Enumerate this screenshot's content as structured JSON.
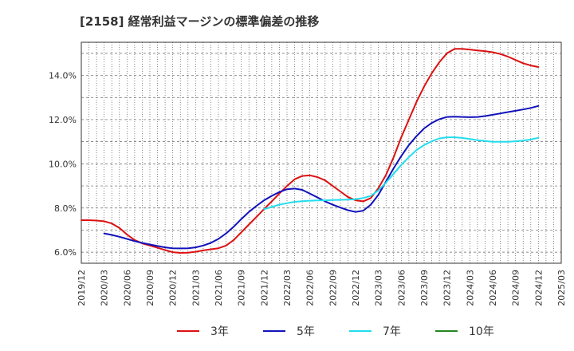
{
  "chart_data": {
    "type": "line",
    "title": "[2158]  経常利益マージンの標準偏差の推移",
    "xlabel": "",
    "ylabel": "",
    "ylim": [
      5.5,
      15.5
    ],
    "y_ticks": [
      "6.0%",
      "8.0%",
      "10.0%",
      "12.0%",
      "14.0%"
    ],
    "y_tick_values": [
      6,
      8,
      10,
      12,
      14
    ],
    "x_ticks": [
      "2019/12",
      "2020/03",
      "2020/06",
      "2020/09",
      "2020/12",
      "2021/03",
      "2021/06",
      "2021/09",
      "2021/12",
      "2022/03",
      "2022/06",
      "2022/09",
      "2022/12",
      "2023/03",
      "2023/06",
      "2023/09",
      "2023/12",
      "2024/03",
      "2024/06",
      "2024/09",
      "2024/12",
      "2025/03"
    ],
    "grid": true,
    "legend_position": "bottom",
    "series": [
      {
        "name": "3年",
        "color": "#dd1111",
        "x": [
          "2019/12",
          "2020/01",
          "2020/02",
          "2020/03",
          "2020/04",
          "2020/05",
          "2020/06",
          "2020/07",
          "2020/08",
          "2020/09",
          "2020/10",
          "2020/11",
          "2020/12",
          "2021/01",
          "2021/02",
          "2021/03",
          "2021/04",
          "2021/05",
          "2021/06",
          "2021/07",
          "2021/08",
          "2021/09",
          "2021/10",
          "2021/11",
          "2021/12",
          "2022/01",
          "2022/02",
          "2022/03",
          "2022/04",
          "2022/05",
          "2022/06",
          "2022/07",
          "2022/08",
          "2022/09",
          "2022/10",
          "2022/11",
          "2022/12",
          "2023/01",
          "2023/02",
          "2023/03",
          "2023/04",
          "2023/05",
          "2023/06",
          "2023/07",
          "2023/08",
          "2023/09",
          "2023/10",
          "2023/11",
          "2023/12",
          "2024/01",
          "2024/02",
          "2024/03",
          "2024/04",
          "2024/05",
          "2024/06",
          "2024/07",
          "2024/08",
          "2024/09",
          "2024/10",
          "2024/11",
          "2024/12"
        ],
        "values": [
          7.45,
          7.45,
          7.43,
          7.4,
          7.3,
          7.1,
          6.8,
          6.55,
          6.4,
          6.3,
          6.2,
          6.1,
          6.0,
          5.97,
          5.98,
          6.02,
          6.08,
          6.13,
          6.18,
          6.3,
          6.55,
          6.9,
          7.25,
          7.6,
          7.95,
          8.3,
          8.65,
          9.0,
          9.3,
          9.45,
          9.48,
          9.4,
          9.25,
          9.0,
          8.75,
          8.5,
          8.35,
          8.3,
          8.45,
          8.9,
          9.5,
          10.3,
          11.2,
          12.0,
          12.8,
          13.5,
          14.1,
          14.6,
          15.0,
          15.2,
          15.2,
          15.17,
          15.13,
          15.1,
          15.05,
          14.97,
          14.85,
          14.7,
          14.55,
          14.45,
          14.38
        ]
      },
      {
        "name": "5年",
        "color": "#1111bb",
        "x": [
          "2020/03",
          "2020/04",
          "2020/05",
          "2020/06",
          "2020/07",
          "2020/08",
          "2020/09",
          "2020/10",
          "2020/11",
          "2020/12",
          "2021/01",
          "2021/02",
          "2021/03",
          "2021/04",
          "2021/05",
          "2021/06",
          "2021/07",
          "2021/08",
          "2021/09",
          "2021/10",
          "2021/11",
          "2021/12",
          "2022/01",
          "2022/02",
          "2022/03",
          "2022/04",
          "2022/05",
          "2022/06",
          "2022/07",
          "2022/08",
          "2022/09",
          "2022/10",
          "2022/11",
          "2022/12",
          "2023/01",
          "2023/02",
          "2023/03",
          "2023/04",
          "2023/05",
          "2023/06",
          "2023/07",
          "2023/08",
          "2023/09",
          "2023/10",
          "2023/11",
          "2023/12",
          "2024/01",
          "2024/02",
          "2024/03",
          "2024/04",
          "2024/05",
          "2024/06",
          "2024/07",
          "2024/08",
          "2024/09",
          "2024/10",
          "2024/11",
          "2024/12"
        ],
        "values": [
          6.85,
          6.78,
          6.7,
          6.6,
          6.5,
          6.42,
          6.35,
          6.28,
          6.22,
          6.18,
          6.17,
          6.18,
          6.22,
          6.3,
          6.42,
          6.6,
          6.85,
          7.15,
          7.5,
          7.82,
          8.1,
          8.35,
          8.55,
          8.72,
          8.85,
          8.88,
          8.82,
          8.65,
          8.48,
          8.3,
          8.15,
          8.02,
          7.9,
          7.82,
          7.88,
          8.15,
          8.6,
          9.2,
          9.8,
          10.35,
          10.85,
          11.25,
          11.6,
          11.85,
          12.02,
          12.12,
          12.13,
          12.12,
          12.11,
          12.12,
          12.16,
          12.22,
          12.28,
          12.34,
          12.4,
          12.46,
          12.53,
          12.62
        ]
      },
      {
        "name": "7年",
        "color": "#22ddee",
        "x": [
          "2021/12",
          "2022/01",
          "2022/02",
          "2022/03",
          "2022/04",
          "2022/05",
          "2022/06",
          "2022/07",
          "2022/08",
          "2022/09",
          "2022/10",
          "2022/11",
          "2022/12",
          "2023/01",
          "2023/02",
          "2023/03",
          "2023/04",
          "2023/05",
          "2023/06",
          "2023/07",
          "2023/08",
          "2023/09",
          "2023/10",
          "2023/11",
          "2023/12",
          "2024/01",
          "2024/02",
          "2024/03",
          "2024/04",
          "2024/05",
          "2024/06",
          "2024/07",
          "2024/08",
          "2024/09",
          "2024/10",
          "2024/11",
          "2024/12"
        ],
        "values": [
          7.95,
          8.05,
          8.15,
          8.22,
          8.28,
          8.31,
          8.33,
          8.34,
          8.35,
          8.36,
          8.37,
          8.38,
          8.4,
          8.45,
          8.55,
          8.8,
          9.15,
          9.55,
          9.95,
          10.3,
          10.62,
          10.85,
          11.02,
          11.15,
          11.2,
          11.2,
          11.17,
          11.12,
          11.07,
          11.03,
          11.0,
          11.0,
          11.0,
          11.02,
          11.05,
          11.1,
          11.18
        ]
      },
      {
        "name": "10年",
        "color": "#228822",
        "x": [],
        "values": []
      }
    ]
  }
}
